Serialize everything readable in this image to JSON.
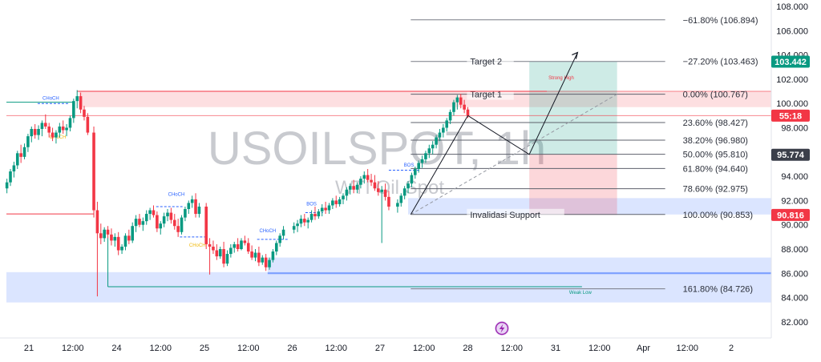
{
  "chart_data": {
    "type": "candlestick",
    "watermark": {
      "symbol": "USOILSPOT, 1h",
      "name": "WTI Oil Spot"
    },
    "y_axis": {
      "range": [
        81.2,
        108.6
      ],
      "ticks": [
        "108.000",
        "106.000",
        "104.000",
        "102.000",
        "100.000",
        "98.000",
        "96.000",
        "94.000",
        "92.000",
        "90.000",
        "88.000",
        "86.000",
        "84.000",
        "82.000"
      ]
    },
    "x_axis": {
      "ticks": [
        {
          "label": "21",
          "day": 0
        },
        {
          "label": "12:00",
          "day": 0.5
        },
        {
          "label": "24",
          "day": 1
        },
        {
          "label": "12:00",
          "day": 1.5
        },
        {
          "label": "25",
          "day": 2
        },
        {
          "label": "12:00",
          "day": 2.5
        },
        {
          "label": "26",
          "day": 3
        },
        {
          "label": "12:00",
          "day": 3.5
        },
        {
          "label": "27",
          "day": 4
        },
        {
          "label": "12:00",
          "day": 4.5
        },
        {
          "label": "28",
          "day": 5
        },
        {
          "label": "12:00",
          "day": 5.5
        },
        {
          "label": "31",
          "day": 6
        },
        {
          "label": "12:00",
          "day": 6.5
        },
        {
          "label": "Apr",
          "day": 7
        },
        {
          "label": "12:00",
          "day": 7.5
        },
        {
          "label": "2",
          "day": 8
        }
      ]
    },
    "price_tags": [
      {
        "label": "103.442",
        "value": 103.442,
        "color": "#089981"
      },
      {
        "label": "55:18",
        "value": 99.0,
        "color": "#f23645"
      },
      {
        "label": "95.774",
        "value": 95.774,
        "color": "#3b3f4a"
      },
      {
        "label": "90.816",
        "value": 90.816,
        "color": "#f23645"
      }
    ],
    "fib_levels": [
      {
        "label": "−61.80% (106.894)",
        "value": 106.894
      },
      {
        "label": "−27.20% (103.463)",
        "value": 103.463
      },
      {
        "label": "0.00% (100.767)",
        "value": 100.767
      },
      {
        "label": "23.60% (98.427)",
        "value": 98.427
      },
      {
        "label": "38.20% (96.980)",
        "value": 96.98
      },
      {
        "label": "50.00% (95.810)",
        "value": 95.81
      },
      {
        "label": "61.80% (94.640)",
        "value": 94.64
      },
      {
        "label": "78.60% (92.975)",
        "value": 92.975
      },
      {
        "label": "100.00% (90.853)",
        "value": 90.853
      },
      {
        "label": "161.80% (84.726)",
        "value": 84.726
      }
    ],
    "fib_annotations": {
      "target1": "Target 1",
      "target2": "Target 2",
      "invalid": "Invalidasi Support"
    },
    "zone_labels": {
      "strong_high": "Strong High",
      "weak_low": "Weak Low"
    },
    "structure_labels": [
      {
        "text": "CHoCH",
        "day": 0.25,
        "value": 100.3,
        "color": "#2962ff"
      },
      {
        "text": "CHoCH",
        "day": 0.33,
        "value": 97.1,
        "color": "#f0b90b"
      },
      {
        "text": "CHoCH",
        "day": 1.68,
        "value": 92.4,
        "color": "#2962ff"
      },
      {
        "text": "CHoCH",
        "day": 1.92,
        "value": 88.2,
        "color": "#f0b90b"
      },
      {
        "text": "CHoCH",
        "day": 2.72,
        "value": 89.4,
        "color": "#2962ff"
      },
      {
        "text": "BOS",
        "day": 3.22,
        "value": 91.6,
        "color": "#2962ff"
      },
      {
        "text": "BOS",
        "day": 4.33,
        "value": 94.8,
        "color": "#2962ff"
      }
    ],
    "candles": [
      [
        -0.25,
        93.0,
        93.8,
        92.6,
        93.5
      ],
      [
        -0.21,
        93.5,
        94.6,
        93.2,
        94.4
      ],
      [
        -0.17,
        94.4,
        95.2,
        93.9,
        94.9
      ],
      [
        -0.13,
        94.9,
        96.1,
        94.6,
        95.9
      ],
      [
        -0.09,
        95.9,
        96.6,
        95.1,
        95.6
      ],
      [
        -0.05,
        95.6,
        96.7,
        95.4,
        96.4
      ],
      [
        -0.01,
        96.4,
        97.5,
        96.0,
        97.3
      ],
      [
        0.03,
        97.3,
        98.1,
        96.8,
        97.9
      ],
      [
        0.07,
        97.9,
        98.3,
        97.1,
        97.4
      ],
      [
        0.11,
        97.4,
        98.2,
        97.0,
        97.9
      ],
      [
        0.15,
        97.9,
        98.6,
        97.3,
        98.4
      ],
      [
        0.19,
        98.4,
        99.1,
        97.9,
        98.1
      ],
      [
        0.23,
        98.1,
        98.4,
        97.2,
        97.6
      ],
      [
        0.27,
        97.6,
        98.0,
        96.9,
        97.2
      ],
      [
        0.31,
        97.2,
        97.8,
        96.7,
        97.6
      ],
      [
        0.35,
        97.6,
        98.4,
        97.2,
        98.1
      ],
      [
        0.39,
        98.1,
        98.6,
        97.5,
        97.8
      ],
      [
        0.43,
        97.8,
        98.3,
        97.3,
        98.0
      ],
      [
        0.47,
        98.0,
        99.0,
        97.7,
        98.8
      ],
      [
        0.51,
        98.8,
        100.4,
        98.4,
        100.2
      ],
      [
        0.55,
        100.2,
        101.1,
        99.6,
        100.6
      ],
      [
        0.59,
        100.6,
        100.9,
        99.2,
        99.5
      ],
      [
        0.63,
        99.5,
        99.8,
        98.6,
        98.9
      ],
      [
        0.67,
        98.9,
        99.2,
        97.4,
        97.6
      ],
      [
        0.74,
        97.6,
        98.1,
        90.6,
        91.2
      ],
      [
        0.78,
        91.2,
        91.9,
        84.1,
        89.3
      ],
      [
        0.82,
        89.3,
        90.1,
        88.4,
        88.9
      ],
      [
        0.86,
        88.9,
        89.8,
        88.6,
        89.6
      ],
      [
        0.9,
        89.6,
        89.9,
        88.9,
        89.2
      ],
      [
        0.94,
        89.2,
        89.7,
        88.3,
        88.7
      ],
      [
        0.98,
        88.7,
        89.3,
        88.2,
        89.0
      ],
      [
        1.02,
        89.0,
        89.4,
        87.5,
        87.9
      ],
      [
        1.06,
        87.9,
        88.4,
        87.6,
        88.2
      ],
      [
        1.1,
        88.2,
        89.3,
        87.9,
        89.1
      ],
      [
        1.14,
        89.1,
        89.6,
        88.4,
        88.7
      ],
      [
        1.18,
        88.7,
        90.2,
        88.5,
        89.9
      ],
      [
        1.22,
        89.9,
        90.8,
        89.4,
        90.5
      ],
      [
        1.26,
        90.5,
        90.9,
        89.8,
        90.0
      ],
      [
        1.3,
        90.0,
        90.6,
        89.5,
        90.3
      ],
      [
        1.34,
        90.3,
        91.2,
        90.0,
        90.9
      ],
      [
        1.38,
        90.9,
        91.4,
        90.4,
        91.2
      ],
      [
        1.42,
        91.2,
        91.6,
        90.6,
        90.8
      ],
      [
        1.46,
        90.8,
        91.1,
        89.4,
        89.7
      ],
      [
        1.5,
        89.7,
        90.3,
        89.2,
        90.1
      ],
      [
        1.54,
        90.1,
        91.0,
        89.8,
        90.7
      ],
      [
        1.58,
        90.7,
        91.3,
        90.3,
        91.0
      ],
      [
        1.62,
        91.0,
        91.4,
        90.1,
        90.4
      ],
      [
        1.66,
        90.4,
        90.9,
        89.6,
        89.9
      ],
      [
        1.7,
        89.9,
        90.5,
        89.0,
        89.4
      ],
      [
        1.74,
        89.4,
        90.8,
        89.2,
        90.6
      ],
      [
        1.78,
        90.6,
        91.5,
        90.3,
        91.3
      ],
      [
        1.82,
        91.3,
        92.0,
        90.9,
        91.8
      ],
      [
        1.86,
        91.8,
        92.4,
        91.4,
        92.1
      ],
      [
        1.9,
        92.1,
        92.6,
        90.6,
        90.9
      ],
      [
        1.94,
        90.9,
        91.8,
        90.6,
        91.5
      ],
      [
        2.02,
        91.5,
        91.8,
        88.0,
        88.4
      ],
      [
        2.06,
        88.4,
        88.9,
        85.9,
        88.2
      ],
      [
        2.1,
        88.2,
        88.7,
        87.6,
        87.9
      ],
      [
        2.14,
        87.9,
        88.4,
        87.1,
        87.4
      ],
      [
        2.18,
        87.4,
        88.2,
        87.2,
        88.0
      ],
      [
        2.22,
        88.0,
        88.6,
        86.5,
        86.8
      ],
      [
        2.26,
        86.8,
        87.9,
        86.6,
        87.6
      ],
      [
        2.3,
        87.6,
        88.4,
        87.3,
        88.1
      ],
      [
        2.34,
        88.1,
        88.6,
        87.7,
        88.4
      ],
      [
        2.38,
        88.4,
        88.9,
        87.8,
        88.0
      ],
      [
        2.42,
        88.0,
        88.9,
        87.9,
        88.7
      ],
      [
        2.46,
        88.7,
        89.1,
        88.3,
        88.5
      ],
      [
        2.5,
        88.5,
        88.9,
        87.6,
        87.8
      ],
      [
        2.54,
        87.8,
        88.3,
        87.1,
        87.3
      ],
      [
        2.58,
        87.3,
        88.0,
        87.0,
        87.7
      ],
      [
        2.62,
        87.7,
        88.2,
        86.6,
        86.9
      ],
      [
        2.66,
        86.9,
        87.5,
        86.7,
        87.3
      ],
      [
        2.7,
        87.3,
        87.6,
        86.2,
        86.5
      ],
      [
        2.74,
        86.5,
        87.3,
        86.3,
        87.1
      ],
      [
        2.78,
        87.1,
        88.0,
        86.9,
        87.8
      ],
      [
        2.82,
        87.8,
        88.7,
        87.5,
        88.5
      ],
      [
        2.86,
        88.5,
        89.3,
        88.2,
        89.1
      ],
      [
        2.9,
        89.1,
        89.9,
        88.8,
        89.6
      ],
      [
        3.02,
        89.6,
        90.2,
        89.3,
        89.9
      ],
      [
        3.06,
        89.9,
        90.4,
        89.4,
        90.1
      ],
      [
        3.1,
        90.1,
        90.8,
        89.8,
        90.5
      ],
      [
        3.14,
        90.5,
        90.9,
        89.9,
        90.2
      ],
      [
        3.18,
        90.2,
        90.6,
        89.7,
        90.4
      ],
      [
        3.22,
        90.4,
        91.2,
        90.2,
        90.9
      ],
      [
        3.26,
        90.9,
        91.5,
        90.4,
        90.7
      ],
      [
        3.3,
        90.7,
        91.3,
        90.5,
        91.1
      ],
      [
        3.34,
        91.1,
        91.7,
        90.7,
        91.4
      ],
      [
        3.38,
        91.4,
        91.9,
        90.9,
        91.2
      ],
      [
        3.42,
        91.2,
        91.8,
        90.9,
        91.6
      ],
      [
        3.46,
        91.6,
        92.2,
        91.3,
        92.0
      ],
      [
        3.5,
        92.0,
        92.4,
        91.4,
        91.7
      ],
      [
        3.54,
        91.7,
        92.3,
        91.5,
        92.1
      ],
      [
        3.58,
        92.1,
        92.6,
        91.7,
        92.4
      ],
      [
        3.62,
        92.4,
        93.1,
        92.0,
        92.9
      ],
      [
        3.66,
        92.9,
        93.4,
        92.5,
        93.2
      ],
      [
        3.7,
        93.2,
        93.7,
        92.6,
        92.9
      ],
      [
        3.74,
        92.9,
        93.5,
        92.6,
        93.3
      ],
      [
        3.78,
        93.3,
        94.0,
        93.0,
        93.8
      ],
      [
        3.82,
        93.8,
        94.4,
        93.4,
        94.1
      ],
      [
        3.86,
        94.1,
        94.6,
        93.5,
        93.7
      ],
      [
        3.9,
        93.7,
        94.2,
        93.2,
        93.5
      ],
      [
        3.94,
        93.5,
        94.1,
        92.8,
        93.0
      ],
      [
        3.98,
        93.0,
        93.6,
        92.4,
        92.7
      ],
      [
        4.02,
        92.7,
        93.2,
        88.5,
        92.9
      ],
      [
        4.06,
        92.9,
        93.4,
        92.0,
        92.3
      ],
      [
        4.1,
        92.3,
        92.8,
        91.2,
        91.5
      ],
      [
        4.2,
        91.5,
        92.1,
        91.0,
        91.8
      ],
      [
        4.24,
        91.8,
        92.6,
        91.5,
        92.4
      ],
      [
        4.28,
        92.4,
        93.2,
        92.1,
        93.0
      ],
      [
        4.32,
        93.0,
        93.6,
        92.6,
        93.4
      ],
      [
        4.36,
        93.4,
        94.3,
        93.1,
        94.1
      ],
      [
        4.4,
        94.1,
        94.8,
        93.8,
        94.6
      ],
      [
        4.44,
        94.6,
        95.3,
        94.3,
        95.1
      ],
      [
        4.48,
        95.1,
        95.7,
        94.7,
        95.4
      ],
      [
        4.52,
        95.4,
        96.1,
        95.1,
        95.9
      ],
      [
        4.56,
        95.9,
        96.6,
        95.5,
        96.3
      ],
      [
        4.6,
        96.3,
        96.9,
        95.8,
        96.6
      ],
      [
        4.64,
        96.6,
        97.4,
        96.3,
        97.2
      ],
      [
        4.68,
        97.2,
        97.9,
        96.9,
        97.6
      ],
      [
        4.72,
        97.6,
        98.3,
        97.2,
        98.0
      ],
      [
        4.76,
        98.0,
        98.8,
        97.7,
        98.6
      ],
      [
        4.8,
        98.6,
        99.5,
        98.3,
        99.3
      ],
      [
        4.84,
        99.3,
        100.3,
        99.0,
        100.1
      ],
      [
        4.88,
        100.1,
        100.7,
        99.5,
        100.5
      ],
      [
        4.92,
        100.5,
        100.8,
        99.6,
        99.9
      ],
      [
        4.96,
        99.9,
        100.3,
        99.2,
        99.5
      ],
      [
        5.0,
        99.5,
        99.7,
        98.8,
        99.0
      ]
    ]
  }
}
